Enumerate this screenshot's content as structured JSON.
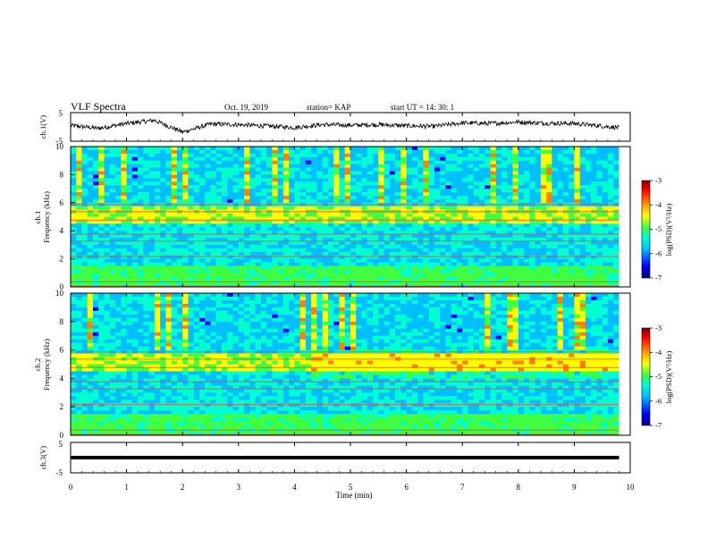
{
  "header": {
    "title": "VLF Spectra",
    "date": "Oct. 19, 2019",
    "station": "station= KAP",
    "start": "start  UT =   14: 30: 1"
  },
  "chart_data": [
    {
      "type": "line",
      "panel": "ch1-waveform",
      "ylabel": "ch.1(V)",
      "ylim": [
        -5,
        5
      ],
      "yticks": [
        "5",
        "-5"
      ],
      "xlim": [
        0,
        10
      ],
      "series": [
        {
          "x": [
            0,
            0.5,
            1,
            1.5,
            2,
            2.5,
            3,
            3.5,
            4,
            4.5,
            5,
            5.5,
            6,
            6.5,
            7,
            7.5,
            8,
            8.5,
            9,
            9.5,
            9.8
          ],
          "values": [
            0.5,
            -0.5,
            1.2,
            2.3,
            -1.8,
            1.0,
            0.8,
            0.3,
            -0.2,
            0.8,
            0.6,
            0.8,
            0.4,
            0.2,
            1.4,
            1.2,
            1.7,
            1.3,
            1.2,
            0.3,
            -0.3
          ]
        }
      ]
    },
    {
      "type": "heatmap",
      "panel": "ch1-spectrogram",
      "ylabel": "ch.1\nFrequency  (kHz)",
      "ylim": [
        0,
        10
      ],
      "yticks": [
        "0",
        "2",
        "4",
        "6",
        "8",
        "10"
      ],
      "xlim": [
        0,
        9.8
      ],
      "colorbar": {
        "label": "log(PSD)(V²/Hz)",
        "range": [
          -7,
          -3
        ],
        "ticks": [
          "-3",
          "-4",
          "-5",
          "-6",
          "-7"
        ]
      }
    },
    {
      "type": "heatmap",
      "panel": "ch2-spectrogram",
      "ylabel": "ch.2\nFrequency  (kHz)",
      "ylim": [
        0,
        10
      ],
      "yticks": [
        "0",
        "2",
        "4",
        "6",
        "8",
        "10"
      ],
      "xlim": [
        0,
        9.8
      ],
      "colorbar": {
        "label": "log(PSD)(V²/Hz)",
        "range": [
          -7,
          -3
        ],
        "ticks": [
          "-3",
          "-4",
          "-5",
          "-6",
          "-7"
        ]
      }
    },
    {
      "type": "line",
      "panel": "ch3-waveform",
      "ylabel": "ch.3(V)",
      "ylim": [
        -5,
        5
      ],
      "yticks": [
        "5",
        "-5"
      ],
      "xlim": [
        0,
        10
      ],
      "series": [
        {
          "x": [
            0,
            9.8
          ],
          "values": [
            0,
            0
          ]
        }
      ]
    }
  ],
  "xaxis": {
    "label": "Time  (min)",
    "ticks": [
      "0",
      "1",
      "2",
      "3",
      "4",
      "5",
      "6",
      "7",
      "8",
      "9",
      "10"
    ]
  },
  "colors": {
    "colormap": [
      "#00007f",
      "#0000ff",
      "#00bfff",
      "#00ffd0",
      "#40ff40",
      "#ffff00",
      "#ff8000",
      "#ff0000",
      "#7f0000"
    ]
  }
}
